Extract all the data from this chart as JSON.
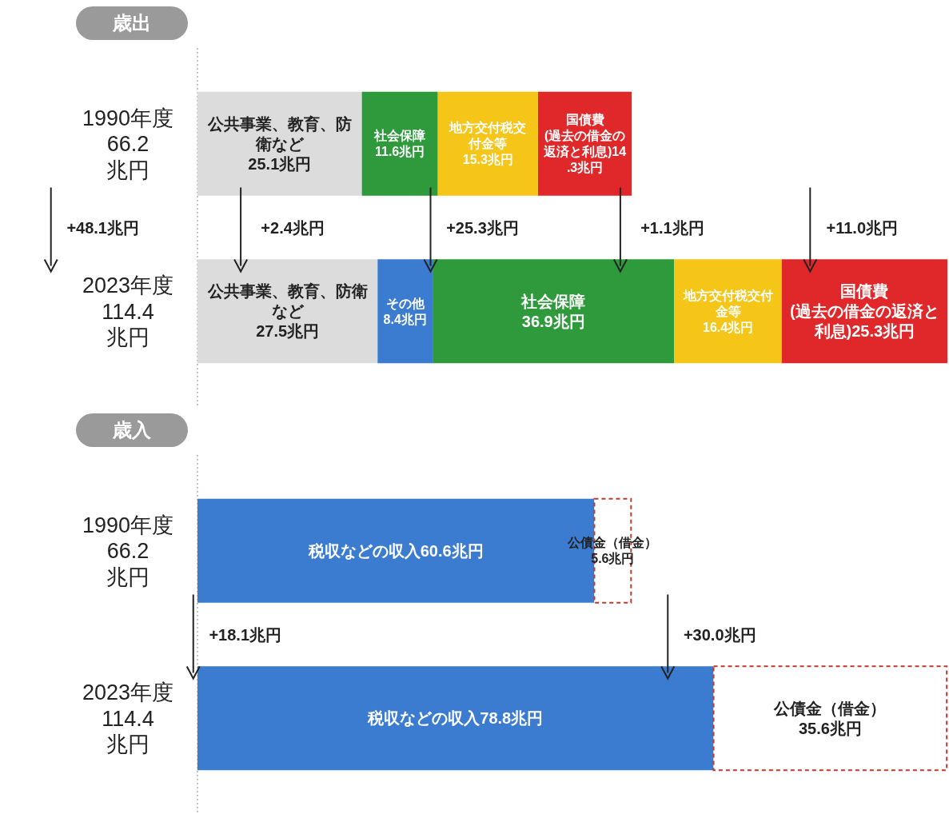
{
  "chart_data": [
    {
      "type": "bar",
      "orientation": "horizontal",
      "stacked": true,
      "title": "歳出",
      "categories": [
        "1990年度\n66.2\n兆円",
        "2023年度\n114.4\n兆円"
      ],
      "series": [
        {
          "name": "公共事業、教育、防衛など",
          "color": "#dcdcdc",
          "values": [
            25.1,
            27.5
          ],
          "value_labels": [
            "25.1兆円",
            "27.5兆円"
          ]
        },
        {
          "name": "その他",
          "color": "#3b7bd0",
          "values": [
            null,
            8.4
          ],
          "value_labels": [
            null,
            "8.4兆円"
          ]
        },
        {
          "name": "社会保障",
          "color": "#2f9a3c",
          "values": [
            11.6,
            36.9
          ],
          "value_labels": [
            "11.6兆円",
            "36.9兆円"
          ]
        },
        {
          "name": "地方交付税交付金等",
          "color": "#f5c518",
          "values": [
            15.3,
            16.4
          ],
          "value_labels": [
            "15.3兆円",
            "16.4兆円"
          ]
        },
        {
          "name": "国債費",
          "color": "#e0282a",
          "values": [
            14.3,
            25.3
          ],
          "value_labels": [
            "(過去の借金の返済と利息)14.3兆円",
            "(過去の借金の返済と利息)25.3兆円"
          ]
        }
      ],
      "annotations": [
        "+48.1兆円",
        "+2.4兆円",
        "+25.3兆円",
        "+1.1兆円",
        "+11.0兆円"
      ]
    },
    {
      "type": "bar",
      "orientation": "horizontal",
      "stacked": true,
      "title": "歳入",
      "categories": [
        "1990年度\n66.2\n兆円",
        "2023年度\n114.4\n兆円"
      ],
      "series": [
        {
          "color": "#3b7bd0",
          "values": [
            60.6,
            78.8
          ],
          "value_labels": [
            "税収などの収入60.6兆円",
            "税収などの収入78.8兆円"
          ]
        },
        {
          "name": "公債金（借金）",
          "color": "#ffffff",
          "line_style": "dashed",
          "values": [
            5.6,
            35.6
          ],
          "value_labels": [
            "5.6兆円",
            "35.6兆円"
          ]
        }
      ],
      "annotations": [
        "+18.1兆円",
        "+30.0兆円"
      ]
    }
  ]
}
